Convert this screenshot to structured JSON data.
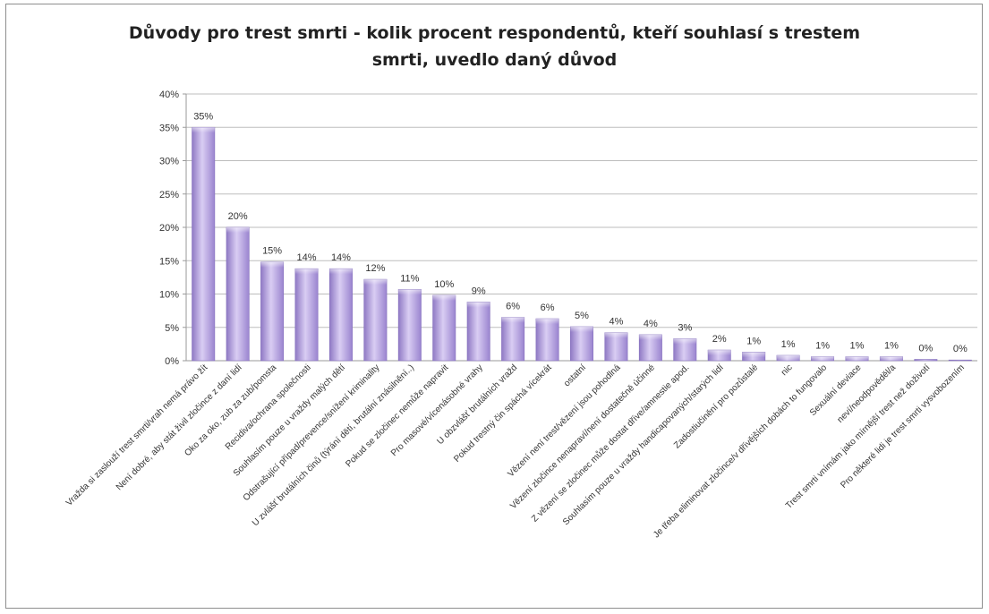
{
  "chart_data": {
    "type": "bar",
    "title_lines": [
      "Důvody pro trest smrti - kolik procent respondentů, kteří souhlasí s trestem",
      "smrti, uvedlo daný důvod"
    ],
    "xlabel": "",
    "ylabel": "",
    "ylim": [
      0,
      40
    ],
    "y_ticks": [
      "0%",
      "5%",
      "10%",
      "15%",
      "20%",
      "25%",
      "30%",
      "35%",
      "40%"
    ],
    "grid": true,
    "legend": "none",
    "bar_color": "#b3a0dc",
    "categories": [
      "Vražda si zaslouží trest smrti/vrah nemá právo žít",
      "Není dobré, aby stát živil zločince z daní lidí",
      "Oko za oko, zub za zub/pomsta",
      "Recidiva/ochrana společnosti",
      "Souhlasím pouze u vraždy malých dětí",
      "Odstrašující případ/prevence/snížení kriminality",
      "U zvlášť brutálních činů (týrání dětí, brutální znásilnění..)",
      "Pokud se zločinec nemůže napravit",
      "Pro masové/vícenásobné vrahy",
      "U obzvlášť brutálních vražd",
      "Pokud trestný čin spáchá vícekrát",
      "ostatní",
      "Vězení není trest/vězení jsou pohodlná",
      "Vězení zločince nenapraví/není dostatečně účinné",
      "Z vězení se zločinec může dostat dříve/amnestie apod.",
      "Souhlasím pouze u vraždy handicapovaných/starých lidí",
      "Zadostiučinění pro pozůstalé",
      "nic",
      "Je třeba eliminovat zločince/v dřívějších dobách to fungovalo",
      "Sexuální deviace",
      "neví/neodpověděl/a",
      "Trest smrti vnímám jako mírnější trest než doživotí",
      "Pro některé lidi je trest smrti vysvobozením"
    ],
    "values": [
      35,
      20,
      15,
      14,
      14,
      12,
      11,
      10,
      9,
      6,
      6,
      5,
      4,
      4,
      3,
      2,
      1,
      1,
      1,
      1,
      1,
      0,
      0
    ],
    "exact_values": [
      35,
      20,
      14.8,
      13.8,
      13.8,
      12.2,
      10.7,
      9.8,
      8.8,
      6.5,
      6.3,
      5.1,
      4.2,
      3.9,
      3.3,
      1.6,
      1.3,
      0.8,
      0.6,
      0.6,
      0.6,
      0.2,
      0.1
    ],
    "data_labels": [
      "35%",
      "20%",
      "15%",
      "14%",
      "14%",
      "12%",
      "11%",
      "10%",
      "9%",
      "6%",
      "6%",
      "5%",
      "4%",
      "4%",
      "3%",
      "2%",
      "1%",
      "1%",
      "1%",
      "1%",
      "1%",
      "0%",
      "0%"
    ]
  }
}
